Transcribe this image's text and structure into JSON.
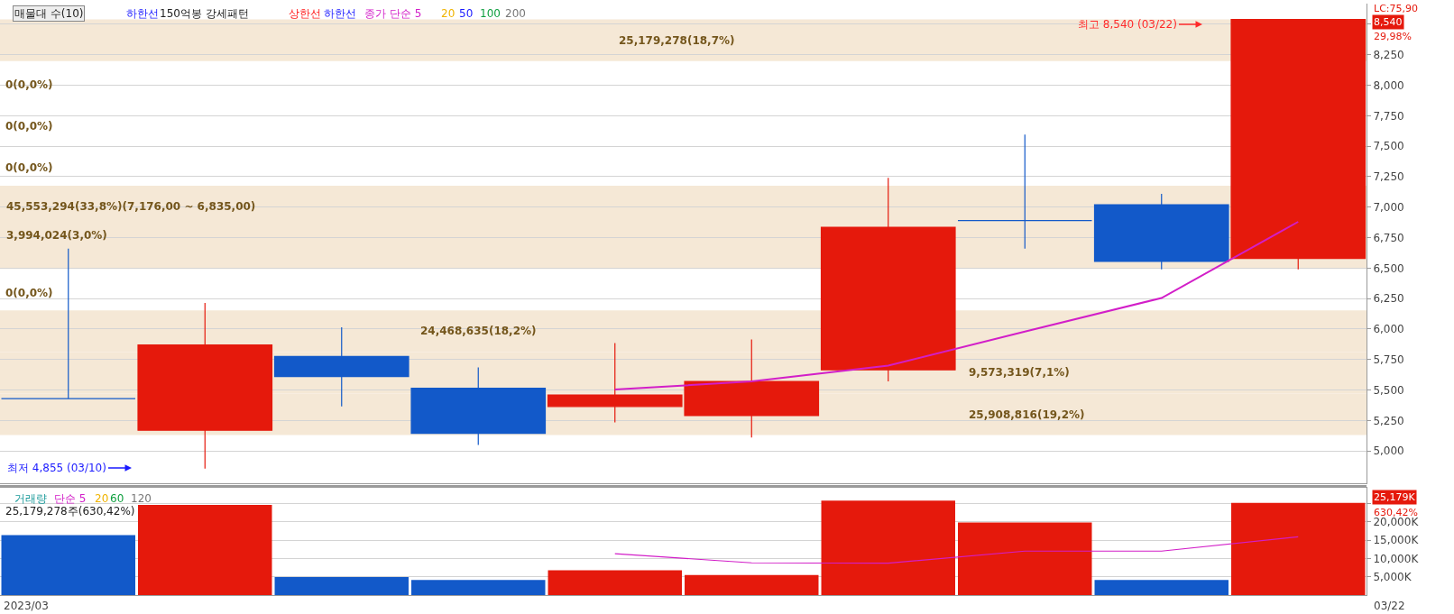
{
  "chart_data": [
    {
      "type": "candlestick",
      "categories": [
        null,
        null,
        null,
        null,
        null,
        null,
        null,
        null,
        null,
        null
      ],
      "ohlc": [
        [
          5430,
          6660,
          5430,
          5430
        ],
        [
          5170,
          6215,
          4855,
          5870
        ],
        [
          5775,
          6015,
          5365,
          5610
        ],
        [
          5515,
          5685,
          5050,
          5145
        ],
        [
          5365,
          5885,
          5235,
          5460
        ],
        [
          5290,
          5915,
          5110,
          5570
        ],
        [
          5665,
          7240,
          5570,
          6835
        ],
        [
          6890,
          7595,
          6660,
          6890
        ],
        [
          7020,
          7110,
          6490,
          6555
        ],
        [
          6580,
          8540,
          6490,
          8540
        ]
      ],
      "colors": [
        "#1259c9",
        "#e5190c",
        "#1259c9",
        "#1259c9",
        "#e5190c",
        "#e5190c",
        "#e5190c",
        "#1259c9",
        "#1259c9",
        "#e5190c"
      ],
      "series": [
        {
          "name": "종가 단순 5",
          "type": "line",
          "color": "#d21ec8",
          "values": [
            null,
            null,
            null,
            null,
            5505,
            5570,
            5700,
            5980,
            6255,
            6880
          ]
        }
      ],
      "ylim": [
        4735,
        8670
      ],
      "yticks": [
        {
          "value": 5000,
          "label": "5,000"
        },
        {
          "value": 5250,
          "label": "5,250"
        },
        {
          "value": 5500,
          "label": "5,500"
        },
        {
          "value": 5750,
          "label": "5,750"
        },
        {
          "value": 6000,
          "label": "6,000"
        },
        {
          "value": 6250,
          "label": "6,250"
        },
        {
          "value": 6500,
          "label": "6,500"
        },
        {
          "value": 6750,
          "label": "6,750"
        },
        {
          "value": 7000,
          "label": "7,000"
        },
        {
          "value": 7250,
          "label": "7,250"
        },
        {
          "value": 7500,
          "label": "7,500"
        },
        {
          "value": 7750,
          "label": "7,750"
        },
        {
          "value": 8000,
          "label": "8,000"
        },
        {
          "value": 8250,
          "label": "8,250"
        },
        {
          "value": 8500,
          "label": null
        }
      ],
      "grid": "y",
      "tick_labels": "y",
      "bands": [
        {
          "axis": "y",
          "from": 8199,
          "to": 8540,
          "label": "25,179,278(18,7%)",
          "color": "#f5e8d6"
        },
        {
          "axis": "y",
          "from": 6835,
          "to": 7176,
          "label": "45,553,294(33,8%)(7,176,00 ~ 6,835,00)",
          "color": "#f5e8d6"
        },
        {
          "axis": "y",
          "from": 6494,
          "to": 6835,
          "label": "3,994,024(3,0%)",
          "color": "#f5e8d6"
        },
        {
          "axis": "y",
          "from": 5812,
          "to": 6153,
          "label": "24,468,635(18,2%)",
          "color": "#f5e8d6"
        },
        {
          "axis": "y",
          "from": 5471,
          "to": 5812,
          "label": "9,573,319(7,1%)",
          "color": "#f5e8d6"
        },
        {
          "axis": "y",
          "from": 5130,
          "to": 5471,
          "label": "25,908,816(19,2%)",
          "color": "#f5e8d6"
        }
      ],
      "annotations": [
        "매물대 수(10)",
        "하한선",
        "150억봉 강세패턴",
        "상한선",
        "하한선",
        "20",
        "50",
        "100",
        "200",
        "LC:75,90",
        "8,540",
        "29,98%",
        "최고 8,540 (03/22)",
        "최저 4,855 (03/10)",
        "0(0,0%)",
        "0(0,0%)",
        "0(0,0%)",
        "0(0,0%)"
      ]
    },
    {
      "type": "bar",
      "categories": [
        null,
        null,
        null,
        null,
        null,
        null,
        null,
        null,
        null,
        null
      ],
      "values": [
        16400,
        24600,
        4900,
        4100,
        6800,
        5500,
        25800,
        19800,
        4100,
        25179
      ],
      "colors": [
        "#1259c9",
        "#e5190c",
        "#1259c9",
        "#1259c9",
        "#e5190c",
        "#e5190c",
        "#e5190c",
        "#e5190c",
        "#1259c9",
        "#e5190c"
      ],
      "series": [
        {
          "name": "단순 5",
          "type": "line",
          "color": "#d21ec8",
          "values": [
            null,
            null,
            null,
            null,
            11300,
            8800,
            8700,
            12000,
            12000,
            15900
          ]
        }
      ],
      "ylim": [
        0,
        29300
      ],
      "yticks": [
        {
          "value": 5000,
          "label": "5,000K"
        },
        {
          "value": 10000,
          "label": "10,000K"
        },
        {
          "value": 15000,
          "label": "15,000K"
        },
        {
          "value": 20000,
          "label": "20,000K"
        },
        {
          "value": 25000,
          "label": null
        }
      ],
      "grid": "y",
      "tick_labels": "y",
      "annotations": [
        "거래량",
        "20",
        "60",
        "120",
        "25,179,278주(630,42%)",
        "2023/03",
        "03/22",
        "25,179K",
        "630,42%"
      ]
    }
  ]
}
